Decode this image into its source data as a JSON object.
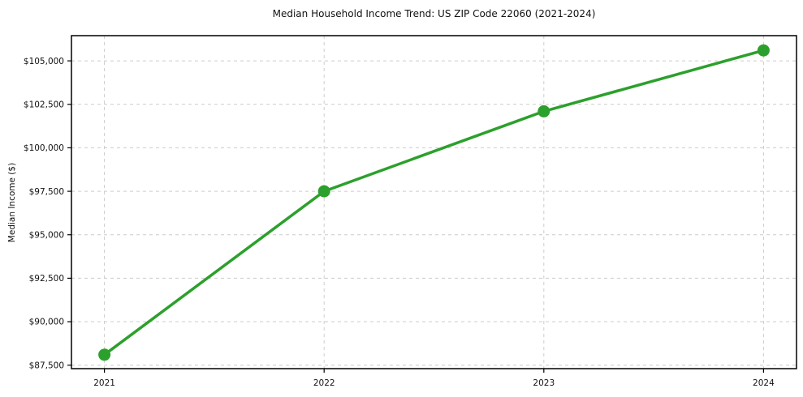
{
  "chart_data": {
    "type": "line",
    "title": "Median Household Income Trend: US ZIP Code 22060 (2021-2024)",
    "xlabel": "",
    "ylabel": "Median Income ($)",
    "x": [
      2021,
      2022,
      2023,
      2024
    ],
    "x_tick_labels": [
      "2021",
      "2022",
      "2023",
      "2024"
    ],
    "series": [
      {
        "values": [
          88100,
          97500,
          102100,
          105600
        ],
        "color": "#2ca02c",
        "marker": "circle",
        "line_style": "solid"
      }
    ],
    "y_ticks": [
      {
        "value": 87500,
        "label": "$87,500"
      },
      {
        "value": 90000,
        "label": "$90,000"
      },
      {
        "value": 92500,
        "label": "$92,500"
      },
      {
        "value": 95000,
        "label": "$95,000"
      },
      {
        "value": 97500,
        "label": "$97,500"
      },
      {
        "value": 100000,
        "label": "$100,000"
      },
      {
        "value": 102500,
        "label": "$102,500"
      },
      {
        "value": 105000,
        "label": "$105,000"
      }
    ],
    "xlim": [
      2020.85,
      2024.15
    ],
    "ylim": [
      87300,
      106450
    ],
    "grid": {
      "visible": true,
      "axes": "both",
      "line_style": "dashed",
      "color": "#cccccc"
    },
    "legend_visible": false,
    "frame_color": "#000000",
    "text_color": "#111111"
  }
}
